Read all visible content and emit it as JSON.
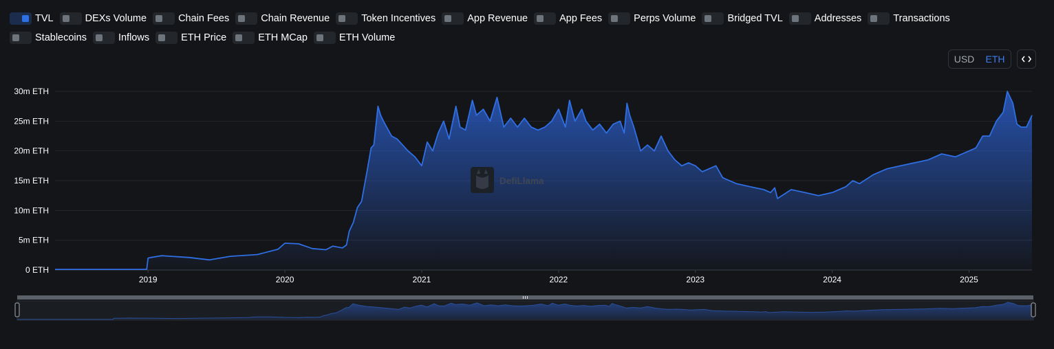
{
  "toggles": [
    {
      "label": "TVL",
      "on": true
    },
    {
      "label": "DEXs Volume",
      "on": false
    },
    {
      "label": "Chain Fees",
      "on": false
    },
    {
      "label": "Chain Revenue",
      "on": false
    },
    {
      "label": "Token Incentives",
      "on": false
    },
    {
      "label": "App Revenue",
      "on": false
    },
    {
      "label": "App Fees",
      "on": false
    },
    {
      "label": "Perps Volume",
      "on": false
    },
    {
      "label": "Bridged TVL",
      "on": false
    },
    {
      "label": "Addresses",
      "on": false
    },
    {
      "label": "Transactions",
      "on": false
    },
    {
      "label": "Stablecoins",
      "on": false
    },
    {
      "label": "Inflows",
      "on": false
    },
    {
      "label": "ETH Price",
      "on": false
    },
    {
      "label": "ETH MCap",
      "on": false
    },
    {
      "label": "ETH Volume",
      "on": false
    }
  ],
  "denomination": {
    "usd_label": "USD",
    "eth_label": "ETH",
    "selected": "ETH"
  },
  "embed_button_label": "<>",
  "watermark": "DefiLlama",
  "colors": {
    "line": "#2f6fe4",
    "area_top": "#2a5cc6",
    "accent": "#3d7cf0"
  },
  "chart_data": {
    "type": "area",
    "title": "",
    "xlabel": "",
    "ylabel": "",
    "ylim": [
      0,
      30
    ],
    "xlim": [
      2018.32,
      2025.46
    ],
    "yticks": [
      0,
      5,
      10,
      15,
      20,
      25,
      30
    ],
    "ytick_labels": [
      "0 ETH",
      "5m ETH",
      "10m ETH",
      "15m ETH",
      "20m ETH",
      "25m ETH",
      "30m ETH"
    ],
    "xticks": [
      2019,
      2020,
      2021,
      2022,
      2023,
      2024,
      2025
    ],
    "xtick_labels": [
      "2019",
      "2020",
      "2021",
      "2022",
      "2023",
      "2024",
      "2025"
    ],
    "grid": true,
    "legend": "none",
    "series": [
      {
        "name": "TVL",
        "x": [
          2018.32,
          2018.99,
          2019.0,
          2019.02,
          2019.1,
          2019.3,
          2019.45,
          2019.6,
          2019.8,
          2019.95,
          2020.0,
          2020.1,
          2020.2,
          2020.3,
          2020.35,
          2020.42,
          2020.45,
          2020.47,
          2020.5,
          2020.53,
          2020.56,
          2020.6,
          2020.63,
          2020.65,
          2020.68,
          2020.7,
          2020.72,
          2020.78,
          2020.82,
          2020.9,
          2020.95,
          2021.0,
          2021.04,
          2021.08,
          2021.12,
          2021.16,
          2021.2,
          2021.25,
          2021.28,
          2021.32,
          2021.37,
          2021.4,
          2021.45,
          2021.5,
          2021.55,
          2021.6,
          2021.65,
          2021.7,
          2021.75,
          2021.8,
          2021.85,
          2021.9,
          2021.95,
          2022.0,
          2022.05,
          2022.08,
          2022.12,
          2022.17,
          2022.2,
          2022.25,
          2022.3,
          2022.35,
          2022.4,
          2022.45,
          2022.48,
          2022.5,
          2022.52,
          2022.55,
          2022.6,
          2022.65,
          2022.7,
          2022.75,
          2022.8,
          2022.85,
          2022.9,
          2022.95,
          2023.0,
          2023.05,
          2023.1,
          2023.15,
          2023.2,
          2023.3,
          2023.4,
          2023.5,
          2023.55,
          2023.58,
          2023.6,
          2023.7,
          2023.8,
          2023.9,
          2024.0,
          2024.05,
          2024.1,
          2024.15,
          2024.2,
          2024.3,
          2024.4,
          2024.5,
          2024.6,
          2024.7,
          2024.8,
          2024.9,
          2025.0,
          2025.05,
          2025.1,
          2025.15,
          2025.2,
          2025.25,
          2025.28,
          2025.32,
          2025.35,
          2025.38,
          2025.42,
          2025.46
        ],
        "y": [
          0.1,
          0.1,
          2.0,
          2.1,
          2.4,
          2.1,
          1.7,
          2.3,
          2.6,
          3.5,
          4.5,
          4.4,
          3.6,
          3.4,
          4.0,
          3.7,
          4.2,
          6.5,
          8.0,
          10.5,
          11.5,
          16.5,
          20.5,
          21.0,
          27.5,
          26.0,
          25.0,
          22.5,
          22.0,
          20.0,
          19.0,
          17.5,
          21.5,
          20.0,
          23.0,
          25.0,
          22.0,
          27.5,
          24.0,
          23.5,
          28.5,
          26.0,
          27.0,
          25.0,
          29.0,
          24.0,
          25.5,
          24.0,
          25.5,
          24.0,
          23.5,
          24.0,
          25.0,
          27.0,
          24.0,
          28.5,
          25.0,
          27.0,
          25.0,
          23.5,
          24.5,
          23.0,
          24.5,
          25.0,
          23.0,
          28.0,
          26.0,
          24.0,
          20.0,
          21.0,
          20.0,
          22.5,
          20.0,
          18.5,
          17.5,
          18.0,
          17.5,
          16.5,
          17.0,
          17.5,
          15.5,
          14.5,
          14.0,
          13.5,
          13.0,
          13.8,
          12.0,
          13.5,
          13.0,
          12.5,
          13.0,
          13.5,
          14.0,
          15.0,
          14.5,
          16.0,
          17.0,
          17.5,
          18.0,
          18.5,
          19.5,
          19.0,
          20.0,
          20.5,
          22.5,
          22.5,
          25.0,
          26.5,
          30.0,
          28.0,
          24.5,
          24.0,
          24.0,
          26.0
        ]
      }
    ]
  }
}
